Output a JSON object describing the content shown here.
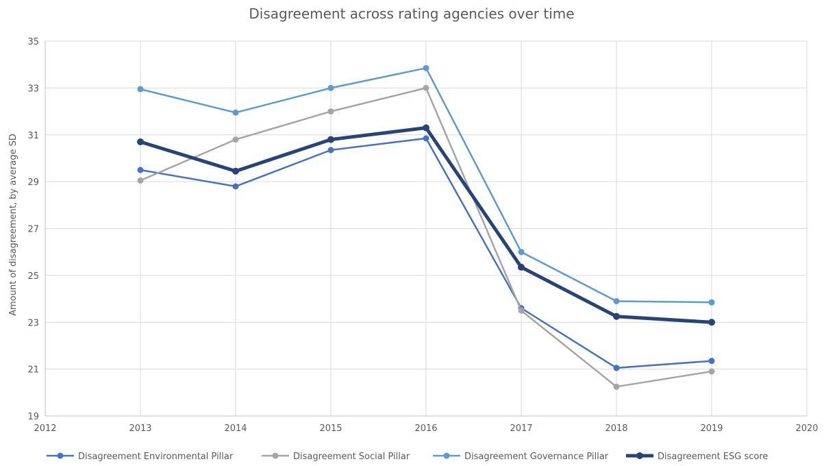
{
  "chart_data": {
    "type": "line",
    "title": "Disagreement across rating agencies over time",
    "xlabel": "",
    "ylabel": "Amount of disagreement, by average SD",
    "xlim": [
      2012,
      2020
    ],
    "ylim": [
      19,
      35
    ],
    "x_ticks": [
      2012,
      2013,
      2014,
      2015,
      2016,
      2017,
      2018,
      2019,
      2020
    ],
    "y_ticks": [
      19,
      21,
      23,
      25,
      27,
      29,
      31,
      33,
      35
    ],
    "grid": true,
    "legend_position": "bottom",
    "x": [
      2013,
      2014,
      2015,
      2016,
      2017,
      2018,
      2019
    ],
    "series": [
      {
        "name": "Disagreement Environmental Pillar",
        "color": "#4472C4",
        "values": [
          29.5,
          28.8,
          30.35,
          30.85,
          23.6,
          21.05,
          21.35
        ]
      },
      {
        "name": "Disagreement Social Pillar",
        "color": "#A5A5A5",
        "values": [
          29.05,
          30.8,
          32.0,
          33.0,
          23.5,
          20.25,
          20.9
        ]
      },
      {
        "name": "Disagreement Governance Pillar",
        "color": "#5B9BD5",
        "values": [
          32.95,
          31.95,
          33.0,
          33.85,
          26.0,
          23.9,
          23.85
        ]
      },
      {
        "name": "Disagreement ESG score",
        "color": "#264478",
        "values": [
          30.7,
          29.45,
          30.8,
          31.3,
          25.35,
          23.25,
          23.0
        ]
      }
    ]
  }
}
